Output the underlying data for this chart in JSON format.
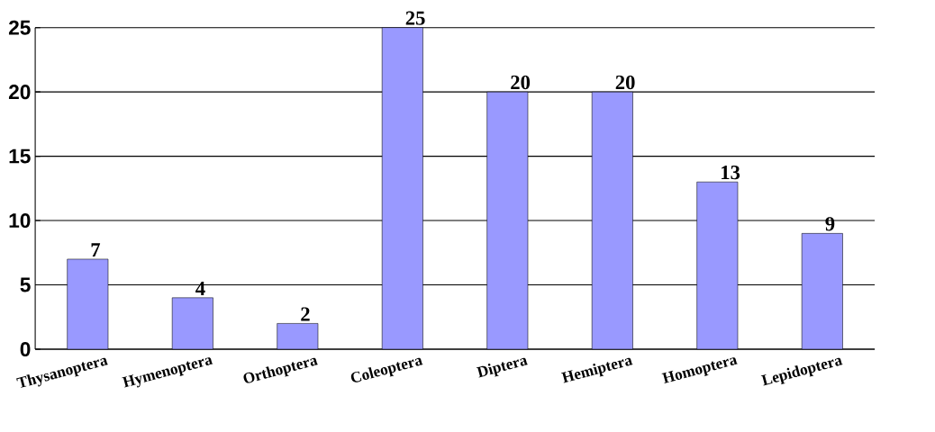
{
  "chart_data": {
    "type": "bar",
    "categories": [
      "Thysanoptera",
      "Hymenoptera",
      "Orthoptera",
      "Coleoptera",
      "Diptera",
      "Hemiptera",
      "Homoptera",
      "Lepidoptera"
    ],
    "values": [
      7,
      4,
      2,
      25,
      20,
      20,
      13,
      9
    ],
    "color": "#9999ff",
    "ylim": [
      0,
      25
    ],
    "yticks": [
      0,
      5,
      10,
      15,
      20,
      25
    ],
    "grid": "y",
    "data_labels": true
  }
}
